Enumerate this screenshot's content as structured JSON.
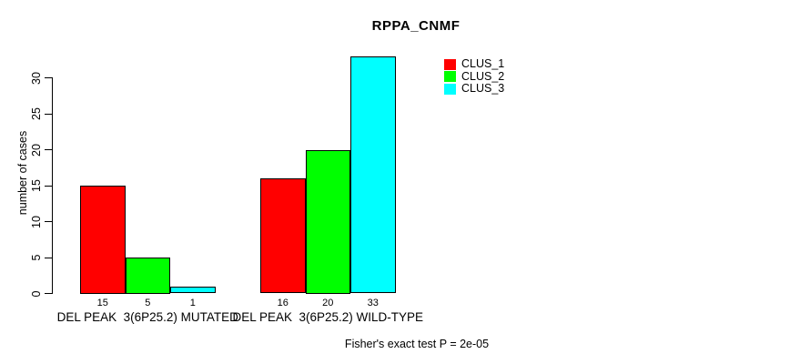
{
  "title": "RPPA_CNMF",
  "footer": "Fisher's exact test P = 2e-05",
  "chart_data": {
    "type": "bar",
    "title": "RPPA_CNMF",
    "ylabel": "number of cases",
    "xlabel": "",
    "categories": [
      "DEL PEAK  3(6P25.2) MUTATED",
      "DEL PEAK  3(6P25.2) WILD-TYPE"
    ],
    "series": [
      {
        "name": "CLUS_1",
        "color": "#ff0000",
        "values": [
          15,
          16
        ]
      },
      {
        "name": "CLUS_2",
        "color": "#00ff00",
        "values": [
          5,
          20
        ]
      },
      {
        "name": "CLUS_3",
        "color": "#00ffff",
        "values": [
          1,
          33
        ]
      }
    ],
    "bar_value_labels": [
      [
        "15",
        "5",
        "1"
      ],
      [
        "16",
        "20",
        "33"
      ]
    ],
    "yticks": [
      0,
      5,
      10,
      15,
      20,
      25,
      30
    ],
    "ylim": [
      0,
      33
    ],
    "grid": false,
    "legend_position": "top-right",
    "legend_items": [
      {
        "label": "CLUS_1",
        "color": "#ff0000"
      },
      {
        "label": "CLUS_2",
        "color": "#00ff00"
      },
      {
        "label": "CLUS_3",
        "color": "#00ffff"
      }
    ],
    "annotation": "Fisher's exact test P = 2e-05",
    "axis_color": "#000000",
    "bar_border_color": "#000000"
  }
}
